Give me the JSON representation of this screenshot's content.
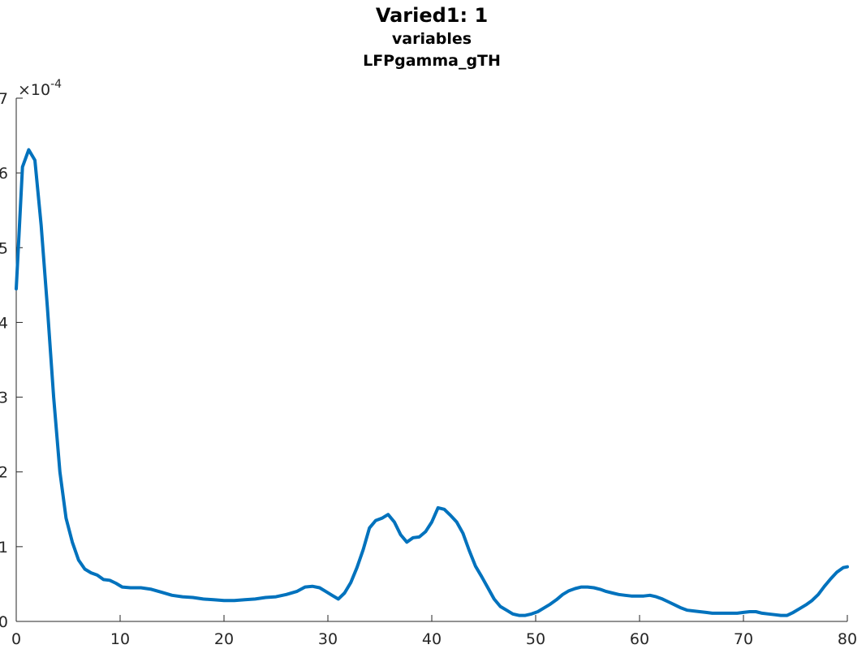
{
  "chart_data": {
    "type": "line",
    "title": "Varied1: 1",
    "subtitle_lines": [
      "variables",
      "LFPgamma_gTH"
    ],
    "xlabel": "",
    "ylabel": "",
    "y_exponent_label": "×10",
    "y_exponent_power": "-4",
    "xlim": [
      0,
      80
    ],
    "ylim": [
      0,
      7
    ],
    "x_ticks": [
      0,
      10,
      20,
      30,
      40,
      50,
      60,
      70,
      80
    ],
    "x_tick_labels": [
      "0",
      "10",
      "20",
      "30",
      "40",
      "50",
      "60",
      "70",
      "80"
    ],
    "y_ticks": [
      0,
      1,
      2,
      3,
      4,
      5,
      6,
      7
    ],
    "y_tick_labels": [
      "0",
      "1",
      "2",
      "3",
      "4",
      "5",
      "6",
      "7"
    ],
    "grid": false,
    "line_color": "#0072BD",
    "series": [
      {
        "x": [
          0,
          0.6,
          1.2,
          1.8,
          2.4,
          3.0,
          3.6,
          4.2,
          4.8,
          5.4,
          6.0,
          6.6,
          7.2,
          7.8,
          8.4,
          9.0,
          9.6,
          10.2,
          11.0,
          12.0,
          13.0,
          14.0,
          15.0,
          16.0,
          17.0,
          18.0,
          19.0,
          20.0,
          21.0,
          22.0,
          23.0,
          24.0,
          25.0,
          26.0,
          27.0,
          27.8,
          28.5,
          29.2,
          29.8,
          30.4,
          31.0,
          31.6,
          32.2,
          32.8,
          33.4,
          34.0,
          34.6,
          35.2,
          35.8,
          36.4,
          37.0,
          37.6,
          38.2,
          38.8,
          39.4,
          40.0,
          40.6,
          41.2,
          41.8,
          42.4,
          43.0,
          43.6,
          44.2,
          44.8,
          45.4,
          46.0,
          46.6,
          47.2,
          47.8,
          48.4,
          49.0,
          49.6,
          50.2,
          50.8,
          51.4,
          52.0,
          52.6,
          53.2,
          53.8,
          54.4,
          55.0,
          55.6,
          56.2,
          56.8,
          57.4,
          58.0,
          58.6,
          59.2,
          59.8,
          60.4,
          61.0,
          61.6,
          62.2,
          62.8,
          63.4,
          64.0,
          64.6,
          65.2,
          65.8,
          66.4,
          67.0,
          67.6,
          68.2,
          68.8,
          69.4,
          70.0,
          70.6,
          71.2,
          71.8,
          72.4,
          73.0,
          73.6,
          74.2,
          74.8,
          75.4,
          76.0,
          76.6,
          77.2,
          77.8,
          78.4,
          79.0,
          79.6,
          80.0
        ],
        "y": [
          4.45,
          6.08,
          6.31,
          6.17,
          5.3,
          4.2,
          3.0,
          2.0,
          1.38,
          1.06,
          0.82,
          0.7,
          0.65,
          0.62,
          0.56,
          0.55,
          0.51,
          0.46,
          0.45,
          0.45,
          0.43,
          0.39,
          0.35,
          0.33,
          0.32,
          0.3,
          0.29,
          0.28,
          0.28,
          0.29,
          0.3,
          0.32,
          0.33,
          0.36,
          0.4,
          0.46,
          0.47,
          0.45,
          0.4,
          0.35,
          0.3,
          0.38,
          0.52,
          0.72,
          0.96,
          1.25,
          1.35,
          1.38,
          1.43,
          1.33,
          1.16,
          1.06,
          1.12,
          1.13,
          1.2,
          1.33,
          1.52,
          1.5,
          1.42,
          1.33,
          1.18,
          0.95,
          0.74,
          0.6,
          0.45,
          0.3,
          0.2,
          0.15,
          0.1,
          0.08,
          0.08,
          0.1,
          0.13,
          0.18,
          0.23,
          0.29,
          0.36,
          0.41,
          0.44,
          0.46,
          0.46,
          0.45,
          0.43,
          0.4,
          0.38,
          0.36,
          0.35,
          0.34,
          0.34,
          0.34,
          0.35,
          0.33,
          0.3,
          0.26,
          0.22,
          0.18,
          0.15,
          0.14,
          0.13,
          0.12,
          0.11,
          0.11,
          0.11,
          0.11,
          0.11,
          0.12,
          0.13,
          0.13,
          0.11,
          0.1,
          0.09,
          0.08,
          0.08,
          0.12,
          0.17,
          0.22,
          0.28,
          0.36,
          0.47,
          0.57,
          0.66,
          0.72,
          0.73
        ]
      }
    ]
  }
}
